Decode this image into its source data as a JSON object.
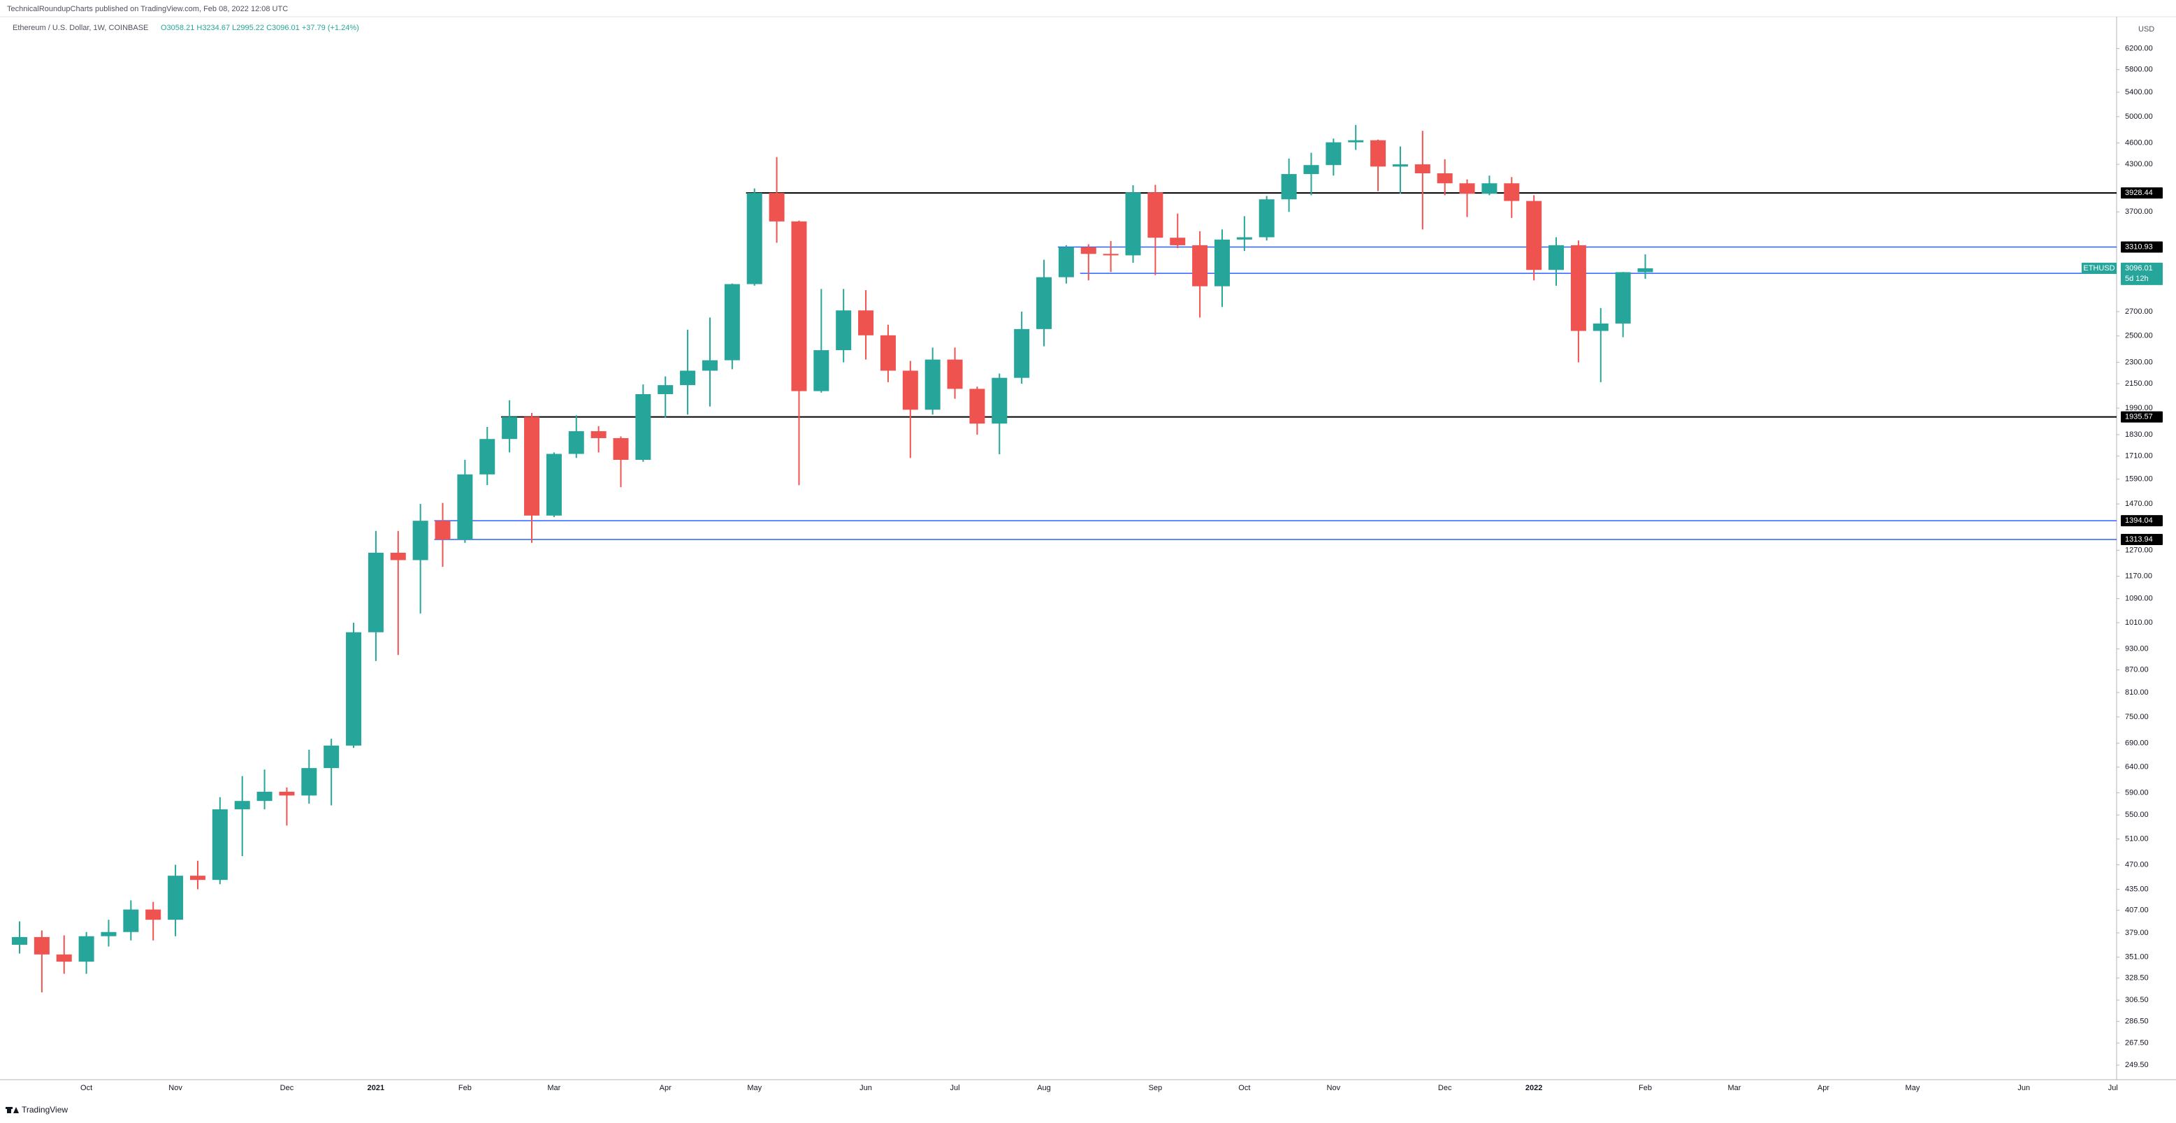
{
  "header": "TechnicalRoundupCharts published on TradingView.com, Feb 08, 2022 12:08 UTC",
  "footer": "TradingView",
  "chart_data": {
    "type": "candlestick",
    "title": "Ethereum / U.S. Dollar, 1W, COINBASE",
    "legend_text": "O3058.21 H3234.67 L2995.22 C3096.01 +37.79 (+1.24%)",
    "symbol": "ETHUSD",
    "countdown": "5d 12h",
    "axis_unit": "USD",
    "up_color": "#26a69a",
    "down_color": "#ef5350",
    "log_scale": true,
    "ylim": [
      238.3,
      6855
    ],
    "yticks": [
      {
        "value": 6200,
        "label": "6200.00"
      },
      {
        "value": 5800,
        "label": "5800.00"
      },
      {
        "value": 5400,
        "label": "5400.00"
      },
      {
        "value": 5000,
        "label": "5000.00"
      },
      {
        "value": 4600,
        "label": "4600.00"
      },
      {
        "value": 4300,
        "label": "4300.00"
      },
      {
        "value": 3700,
        "label": "3700.00"
      },
      {
        "value": 2700,
        "label": "2700.00"
      },
      {
        "value": 2500,
        "label": "2500.00"
      },
      {
        "value": 2300,
        "label": "2300.00"
      },
      {
        "value": 2150,
        "label": "2150.00"
      },
      {
        "value": 1990,
        "label": "1990.00"
      },
      {
        "value": 1830,
        "label": "1830.00"
      },
      {
        "value": 1710,
        "label": "1710.00"
      },
      {
        "value": 1590,
        "label": "1590.00"
      },
      {
        "value": 1470,
        "label": "1470.00"
      },
      {
        "value": 1270,
        "label": "1270.00"
      },
      {
        "value": 1170,
        "label": "1170.00"
      },
      {
        "value": 1090,
        "label": "1090.00"
      },
      {
        "value": 1010,
        "label": "1010.00"
      },
      {
        "value": 930,
        "label": "930.00"
      },
      {
        "value": 870,
        "label": "870.00"
      },
      {
        "value": 810,
        "label": "810.00"
      },
      {
        "value": 750,
        "label": "750.00"
      },
      {
        "value": 690,
        "label": "690.00"
      },
      {
        "value": 640,
        "label": "640.00"
      },
      {
        "value": 590,
        "label": "590.00"
      },
      {
        "value": 550,
        "label": "550.00"
      },
      {
        "value": 510,
        "label": "510.00"
      },
      {
        "value": 470,
        "label": "470.00"
      },
      {
        "value": 435,
        "label": "435.00"
      },
      {
        "value": 407,
        "label": "407.00"
      },
      {
        "value": 379,
        "label": "379.00"
      },
      {
        "value": 351,
        "label": "351.00"
      },
      {
        "value": 328.5,
        "label": "328.50"
      },
      {
        "value": 306.5,
        "label": "306.50"
      },
      {
        "value": 286.5,
        "label": "286.50"
      },
      {
        "value": 267.5,
        "label": "267.50"
      },
      {
        "value": 249.5,
        "label": "249.50"
      }
    ],
    "categories": [
      null,
      null,
      null,
      "Oct",
      null,
      null,
      null,
      "Nov",
      null,
      null,
      null,
      null,
      "Dec",
      null,
      null,
      null,
      "2021",
      null,
      null,
      null,
      "Feb",
      null,
      null,
      null,
      "Mar",
      null,
      null,
      null,
      null,
      "Apr",
      null,
      null,
      null,
      "May",
      null,
      null,
      null,
      null,
      "Jun",
      null,
      null,
      null,
      "Jul",
      null,
      null,
      null,
      "Aug",
      null,
      null,
      null,
      null,
      "Sep",
      null,
      null,
      null,
      "Oct",
      null,
      null,
      null,
      "Nov",
      null,
      null,
      null,
      null,
      "Dec",
      null,
      null,
      null,
      "2022",
      null,
      null,
      null,
      null,
      "Feb",
      null,
      null,
      null,
      "Mar",
      null,
      null,
      null,
      "Apr",
      null,
      null,
      null,
      "May",
      null,
      null,
      null,
      null,
      "Jun",
      null,
      null,
      null,
      "Jul"
    ],
    "open": [
      365,
      374,
      354,
      346,
      375,
      380,
      408,
      395,
      454,
      448,
      560,
      575,
      592,
      585,
      638,
      685,
      980,
      1260,
      1231,
      1394,
      1314,
      1614,
      1805,
      1936,
      1417,
      1722,
      1850,
      1810,
      1690,
      2080,
      2140,
      2240,
      2315,
      2945,
      3928,
      3590,
      2100,
      2390,
      2710,
      2505,
      2240,
      1980,
      2320,
      2115,
      1895,
      2190,
      2555,
      3010,
      3310,
      3240,
      3225,
      3935,
      3410,
      3330,
      2925,
      3390,
      3415,
      3850,
      4170,
      4290,
      4610,
      4640,
      4270,
      4300,
      4180,
      4050,
      3920,
      4050,
      3830,
      3080,
      3330,
      2540,
      2600,
      3058.21,
      null,
      null,
      null,
      null,
      null,
      null,
      null,
      null,
      null,
      null,
      null,
      null,
      null,
      null,
      null,
      null,
      null,
      null,
      null,
      null,
      null
    ],
    "high": [
      393,
      382,
      376,
      380,
      395,
      420,
      418,
      470,
      476,
      582,
      622,
      635,
      600,
      676,
      700,
      1010,
      1350,
      1350,
      1470,
      1475,
      1690,
      1875,
      2040,
      1960,
      1730,
      1945,
      1880,
      1820,
      2145,
      2200,
      2550,
      2650,
      2950,
      3985,
      4400,
      3600,
      2900,
      2900,
      2890,
      2590,
      2310,
      2410,
      2410,
      2130,
      2220,
      2700,
      3180,
      3330,
      3340,
      3375,
      4025,
      4030,
      3680,
      3480,
      3500,
      3650,
      3890,
      4380,
      4460,
      4665,
      4870,
      4650,
      4550,
      4780,
      4370,
      4100,
      4150,
      4130,
      3900,
      3415,
      3380,
      2730,
      3060,
      3234.67,
      null,
      null,
      null,
      null,
      null,
      null,
      null,
      null,
      null,
      null,
      null,
      null,
      null,
      null,
      null,
      null,
      null,
      null,
      null,
      null,
      null
    ],
    "low": [
      355,
      314,
      333,
      333,
      363,
      370,
      370,
      375,
      435,
      442,
      483,
      560,
      532,
      570,
      567,
      680,
      895,
      912,
      1040,
      1205,
      1300,
      1560,
      1730,
      1300,
      1410,
      1700,
      1730,
      1550,
      1680,
      1930,
      1950,
      2000,
      2250,
      2930,
      3356,
      1560,
      2090,
      2300,
      2320,
      2160,
      1700,
      1950,
      2050,
      1830,
      1720,
      2150,
      2420,
      2950,
      2980,
      3060,
      3150,
      3030,
      3300,
      2650,
      2740,
      3270,
      3380,
      3700,
      3900,
      4150,
      4500,
      3950,
      3920,
      3500,
      3900,
      3640,
      3900,
      3630,
      2980,
      2930,
      2300,
      2160,
      2490,
      2995.22,
      null,
      null,
      null,
      null,
      null,
      null,
      null,
      null,
      null,
      null,
      null,
      null,
      null,
      null,
      null,
      null,
      null,
      null,
      null,
      null,
      null
    ],
    "close": [
      374,
      354,
      346,
      375,
      380,
      408,
      395,
      454,
      448,
      560,
      575,
      592,
      585,
      638,
      685,
      980,
      1260,
      1231,
      1394,
      1314,
      1614,
      1805,
      1936,
      1417,
      1722,
      1850,
      1810,
      1690,
      2080,
      2140,
      2240,
      2315,
      2945,
      3928,
      3590,
      2100,
      2390,
      2710,
      2505,
      2240,
      1980,
      2320,
      2115,
      1895,
      2190,
      2555,
      3010,
      3310,
      3240,
      3225,
      3935,
      3410,
      3330,
      2925,
      3390,
      3415,
      3850,
      4170,
      4290,
      4610,
      4640,
      4270,
      4300,
      4180,
      4050,
      3920,
      4050,
      3830,
      3080,
      3330,
      2540,
      2600,
      3058.22,
      3096.01,
      null,
      null,
      null,
      null,
      null,
      null,
      null,
      null,
      null,
      null,
      null,
      null,
      null,
      null,
      null,
      null,
      null,
      null,
      null,
      null,
      null
    ],
    "levels": [
      {
        "value": 3928.44,
        "color": "#000000",
        "from": 33
      },
      {
        "value": 3310.93,
        "color": "#2962ff",
        "from": 47
      },
      {
        "value": 3047.21,
        "color": "#2962ff",
        "from": 48
      },
      {
        "value": 1935.57,
        "color": "#000000",
        "from": 22
      },
      {
        "value": 1394.04,
        "color": "#2962ff",
        "from": 19
      },
      {
        "value": 1313.94,
        "color": "#2962ff",
        "from": 19
      }
    ]
  }
}
